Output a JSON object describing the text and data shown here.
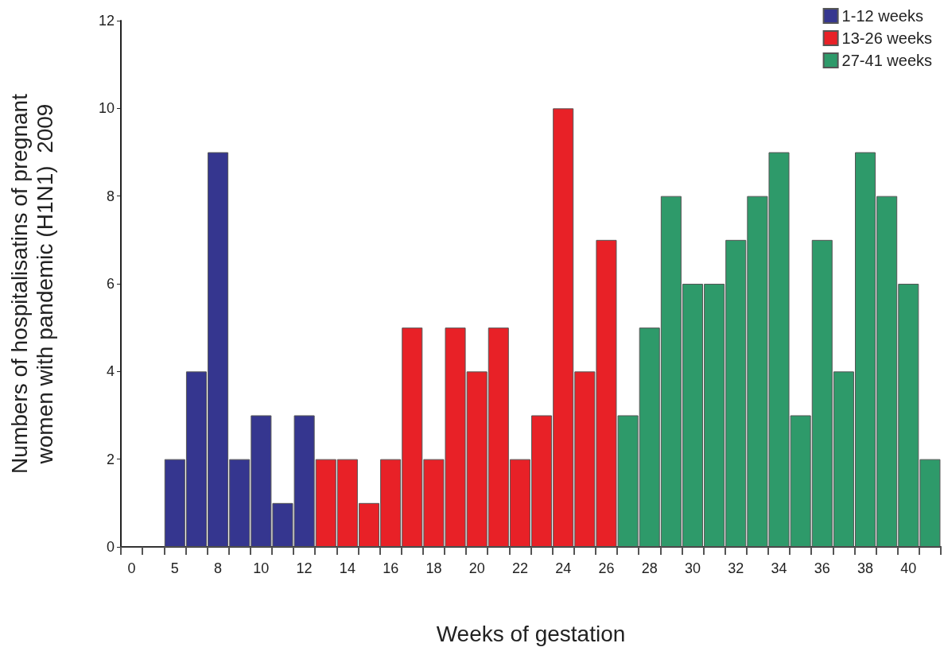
{
  "chart_data": {
    "type": "bar",
    "xlabel": "Weeks of gestation",
    "ylabel": "Numbers of hospitalisatins of pregnant\nwomen with pandemic (H1N1)  2009",
    "categories": [
      "0",
      null,
      "5",
      null,
      "8",
      null,
      "10",
      null,
      "12",
      null,
      "14",
      null,
      "16",
      null,
      "18",
      null,
      "20",
      null,
      "22",
      null,
      "24",
      null,
      "26",
      null,
      "28",
      null,
      "30",
      null,
      "32",
      null,
      "34",
      null,
      "36",
      null,
      "38",
      null,
      "40",
      null
    ],
    "series": [
      {
        "name": "1-12 weeks",
        "color": "#35368f",
        "values": [
          null,
          null,
          2,
          4,
          9,
          2,
          3,
          1,
          3,
          null,
          null,
          null,
          null,
          null,
          null,
          null,
          null,
          null,
          null,
          null,
          null,
          null,
          null,
          null,
          null,
          null,
          null,
          null,
          null,
          null,
          null,
          null,
          null,
          null,
          null,
          null,
          null,
          null
        ]
      },
      {
        "name": "13-26 weeks",
        "color": "#e82127",
        "values": [
          null,
          null,
          null,
          null,
          null,
          null,
          null,
          null,
          null,
          2,
          2,
          1,
          2,
          5,
          2,
          5,
          4,
          5,
          2,
          3,
          10,
          4,
          7,
          null,
          null,
          null,
          null,
          null,
          null,
          null,
          null,
          null,
          null,
          null,
          null,
          null,
          null,
          null
        ]
      },
      {
        "name": "27-41 weeks",
        "color": "#2e9a6a",
        "values": [
          null,
          null,
          null,
          null,
          null,
          null,
          null,
          null,
          null,
          null,
          null,
          null,
          null,
          null,
          null,
          null,
          null,
          null,
          null,
          null,
          null,
          null,
          null,
          3,
          5,
          8,
          6,
          6,
          7,
          8,
          9,
          3,
          7,
          4,
          9,
          8,
          6,
          2
        ]
      }
    ],
    "ylim": [
      0,
      12
    ],
    "yticks": [
      0,
      2,
      4,
      6,
      8,
      10,
      12
    ],
    "grid": false,
    "legend": "top right"
  }
}
